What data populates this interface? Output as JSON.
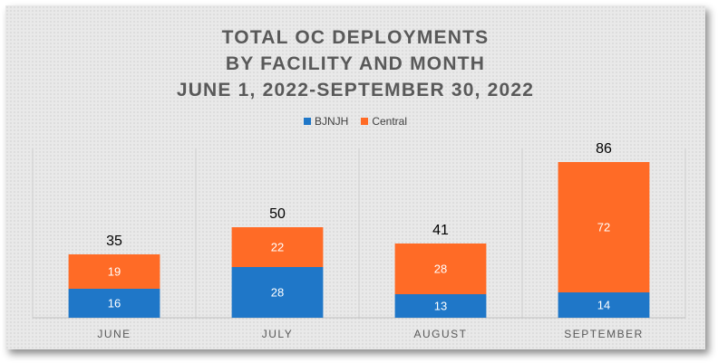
{
  "colors": {
    "bjnjh": "#1f77c8",
    "central": "#ff6b26"
  },
  "chart_data": {
    "type": "bar",
    "stacked": true,
    "title_lines": [
      "TOTAL OC DEPLOYMENTS",
      "BY FACILITY AND MONTH",
      "JUNE 1, 2022-SEPTEMBER 30, 2022"
    ],
    "categories": [
      "JUNE",
      "JULY",
      "AUGUST",
      "SEPTEMBER"
    ],
    "series": [
      {
        "name": "BJNJH",
        "values": [
          16,
          28,
          13,
          14
        ]
      },
      {
        "name": "Central",
        "values": [
          19,
          22,
          28,
          72
        ]
      }
    ],
    "totals": [
      35,
      50,
      41,
      86
    ],
    "ylim": [
      0,
      90
    ],
    "legend_position": "top-center",
    "grid": false,
    "xlabel": "",
    "ylabel": ""
  }
}
